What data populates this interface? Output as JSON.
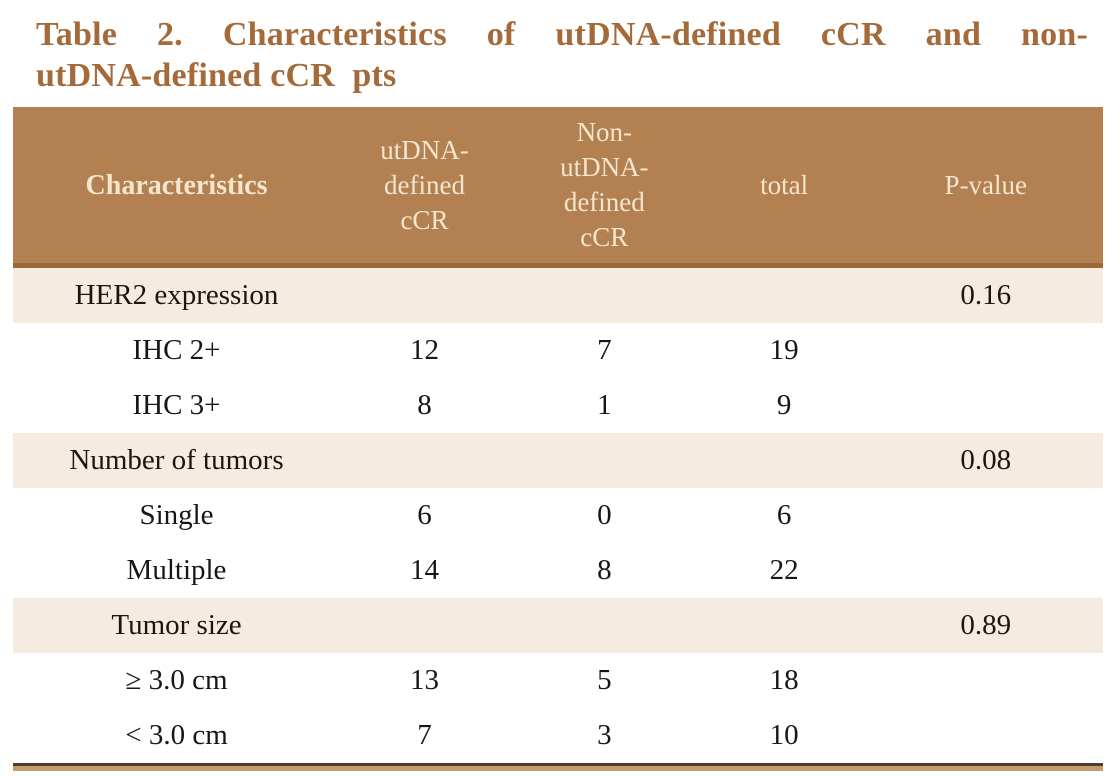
{
  "title": {
    "line1": "Table 2. Characteristics of utDNA-defined cCR and non-",
    "line2": "utDNA-defined cCR  pts"
  },
  "colors": {
    "title_text": "#a46a3a",
    "header_bg": "#b28051",
    "header_text": "#f4e5cd",
    "header_divider": "#9a6836",
    "stripe_row_bg": "#f6ebe0",
    "body_text": "#1a1614",
    "bottom_border_dark": "#4f3d2c",
    "bottom_border_tan": "#c39b6f"
  },
  "table": {
    "header": {
      "col1": "Characteristics",
      "col2": "utDNA-\ndefined\ncCR",
      "col3": "Non-\nutDNA-\ndefined\ncCR",
      "col4": "total",
      "col5": "P-value"
    },
    "rows": [
      {
        "label": "HER2 expression",
        "c1": "",
        "c2": "",
        "c3": "",
        "p": "0.16"
      },
      {
        "label": "IHC 2+",
        "c1": "12",
        "c2": "7",
        "c3": "19",
        "p": ""
      },
      {
        "label": "IHC 3+",
        "c1": "8",
        "c2": "1",
        "c3": "9",
        "p": ""
      },
      {
        "label": "Number of tumors",
        "c1": "",
        "c2": "",
        "c3": "",
        "p": "0.08"
      },
      {
        "label": "Single",
        "c1": "6",
        "c2": "0",
        "c3": "6",
        "p": ""
      },
      {
        "label": "Multiple",
        "c1": "14",
        "c2": "8",
        "c3": "22",
        "p": ""
      },
      {
        "label": "Tumor size",
        "c1": "",
        "c2": "",
        "c3": "",
        "p": "0.89"
      },
      {
        "label": "≥ 3.0 cm",
        "c1": "13",
        "c2": "5",
        "c3": "18",
        "p": ""
      },
      {
        "label": "< 3.0 cm",
        "c1": "7",
        "c2": "3",
        "c3": "10",
        "p": ""
      }
    ]
  }
}
